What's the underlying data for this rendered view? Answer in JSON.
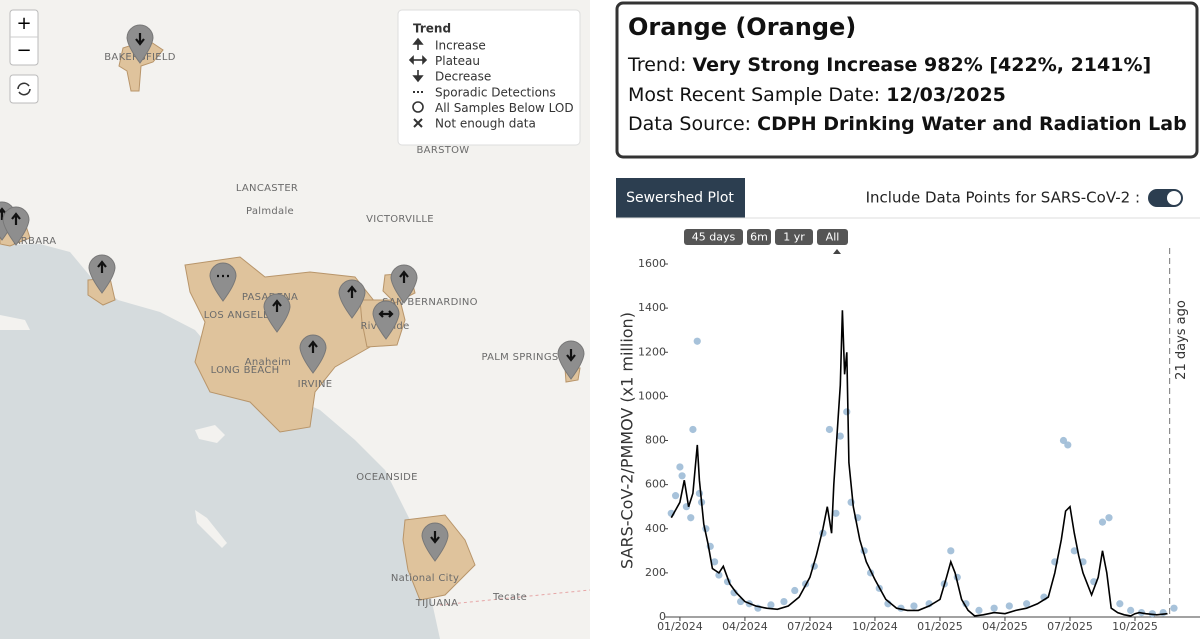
{
  "map": {
    "zoom_in": "+",
    "zoom_out": "−",
    "legend": {
      "title": "Trend",
      "items": [
        "Increase",
        "Plateau",
        "Decrease",
        "Sporadic Detections",
        "All Samples Below LOD",
        "Not enough data"
      ]
    },
    "places": [
      "BAKERSFIELD",
      "BARSTOW",
      "LANCASTER",
      "Palmdale",
      "VICTORVILLE",
      "ARBARA",
      "PASADENA",
      "LOS ANGELES",
      "SAN BERNARDINO",
      "Riverside",
      "LONG BEACH",
      "Anaheim",
      "IRVINE",
      "PALM SPRINGS",
      "OCEANSIDE",
      "National City",
      "TIJUANA",
      "Tecate"
    ]
  },
  "info": {
    "title": "Orange (Orange)",
    "trend_label": "Trend:",
    "trend_value": "Very Strong Increase 982% [422%, 2141%]",
    "date_label": "Most Recent Sample Date:",
    "date_value": "12/03/2025",
    "source_label": "Data Source:",
    "source_value": "CDPH Drinking Water and Radiation Lab"
  },
  "tab": "Sewershed Plot",
  "toggle_label": "Include Data Points for SARS-CoV-2 :",
  "range_buttons": [
    "45 days",
    "6m",
    "1 yr",
    "All"
  ],
  "chart_data": {
    "type": "line",
    "y_label": "SARS-CoV-2/PMMOV (x1 million)",
    "xlim": [
      -0.55,
      24
    ],
    "ylim": [
      0,
      1600
    ],
    "yticks": [
      0,
      200,
      400,
      600,
      800,
      1000,
      1200,
      1400,
      1600
    ],
    "xticks": [
      {
        "value": 0,
        "label": "01/2024"
      },
      {
        "value": 3,
        "label": "04/2024"
      },
      {
        "value": 6,
        "label": "07/2024"
      },
      {
        "value": 9,
        "label": "10/2024"
      },
      {
        "value": 12,
        "label": "01/2025"
      },
      {
        "value": 15,
        "label": "04/2025"
      },
      {
        "value": 18,
        "label": "07/2025"
      },
      {
        "value": 21,
        "label": "10/2025"
      }
    ],
    "line": {
      "color": "#000000",
      "x": [
        -0.4,
        0,
        0.2,
        0.4,
        0.6,
        0.8,
        0.9,
        1.1,
        1.3,
        1.5,
        1.8,
        2,
        2.3,
        2.6,
        3,
        3.5,
        4,
        4.5,
        5,
        5.5,
        6,
        6.3,
        6.6,
        6.8,
        7,
        7.1,
        7.3,
        7.4,
        7.5,
        7.6,
        7.7,
        7.8,
        8,
        8.3,
        8.6,
        9,
        9.5,
        10,
        10.5,
        11,
        11.5,
        12,
        12.3,
        12.5,
        12.7,
        13,
        13.3,
        13.6,
        14,
        14.5,
        15,
        15.5,
        16,
        16.5,
        17,
        17.3,
        17.6,
        17.8,
        18,
        18.2,
        18.4,
        18.6,
        19,
        19.3,
        19.5,
        19.7,
        19.9,
        20.2,
        20.5,
        20.8,
        21,
        21.2,
        21.5,
        22,
        22.5
      ],
      "values": [
        450,
        520,
        620,
        500,
        560,
        780,
        620,
        420,
        330,
        220,
        200,
        230,
        150,
        110,
        70,
        50,
        40,
        35,
        50,
        90,
        180,
        280,
        400,
        500,
        380,
        600,
        900,
        1050,
        1390,
        1100,
        1200,
        700,
        500,
        350,
        250,
        170,
        80,
        40,
        30,
        30,
        50,
        80,
        180,
        250,
        200,
        80,
        30,
        5,
        10,
        20,
        15,
        30,
        40,
        60,
        90,
        200,
        350,
        480,
        500,
        380,
        280,
        200,
        100,
        180,
        300,
        200,
        40,
        20,
        10,
        5,
        15,
        20,
        15,
        10,
        15
      ]
    },
    "points": {
      "color": "#9dbbd6",
      "x": [
        -0.4,
        -0.2,
        0,
        0.1,
        0.3,
        0.5,
        0.6,
        0.8,
        0.9,
        1,
        1.2,
        1.4,
        1.6,
        1.8,
        2.2,
        2.5,
        2.8,
        3.2,
        3.6,
        4.2,
        4.8,
        5.3,
        5.8,
        6.2,
        6.6,
        6.9,
        7.2,
        7.4,
        7.7,
        7.9,
        8.2,
        8.5,
        8.8,
        9.2,
        9.6,
        10.2,
        10.8,
        11.5,
        12.2,
        12.5,
        12.8,
        13.2,
        13.8,
        14.5,
        15.2,
        16,
        16.8,
        17.3,
        17.7,
        17.9,
        18.2,
        18.6,
        19.1,
        19.5,
        19.8,
        20.3,
        20.8,
        21.3,
        21.8,
        22.3,
        22.8
      ],
      "values": [
        470,
        550,
        680,
        640,
        500,
        450,
        850,
        1250,
        560,
        520,
        400,
        320,
        250,
        190,
        160,
        110,
        70,
        60,
        40,
        55,
        70,
        120,
        150,
        230,
        380,
        850,
        470,
        820,
        930,
        520,
        450,
        300,
        200,
        130,
        60,
        40,
        50,
        60,
        150,
        300,
        180,
        60,
        30,
        40,
        50,
        60,
        90,
        250,
        800,
        780,
        300,
        250,
        160,
        430,
        450,
        60,
        30,
        20,
        15,
        20,
        40
      ]
    },
    "annotation": {
      "text": "21 days ago",
      "x": 22.6
    }
  }
}
